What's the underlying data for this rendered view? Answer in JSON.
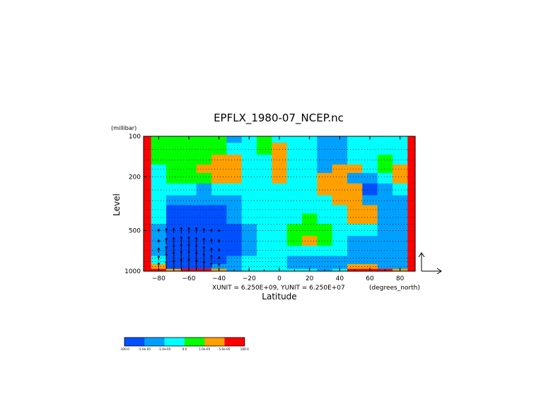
{
  "chart_data": {
    "type": "heatmap",
    "title": "EPFLX_1980-07_NCEP.nc",
    "xlabel": "Latitude",
    "ylabel": "Level",
    "y_unit": "(millibar)",
    "x_unit": "(degrees_north)",
    "vector_scale_text": "XUNIT = 6.250E+09, YUNIT = 6.250E+07",
    "xlim": [
      -90,
      90
    ],
    "ylim": [
      1000,
      100
    ],
    "y_scale": "log",
    "x_ticks": [
      -80,
      -60,
      -40,
      -20,
      0,
      20,
      40,
      60,
      80
    ],
    "y_ticks": [
      100,
      200,
      500,
      1000
    ],
    "colorbar": {
      "colors": [
        "#0050ff",
        "#00a0ff",
        "#00ffff",
        "#00ff00",
        "#ffa000",
        "#ff0000"
      ],
      "labels": [
        "-100.0",
        "-5.0e-05",
        "-1.0e-05",
        "0.0",
        "1.0e-05",
        "5.0e-05",
        "100.0"
      ]
    },
    "levels": [
      100,
      125,
      150,
      175,
      200,
      250,
      300,
      350,
      400,
      500,
      600,
      700,
      850,
      925,
      1000
    ],
    "lats": [
      -90,
      -80,
      -70,
      -60,
      -50,
      -40,
      -30,
      -20,
      -10,
      0,
      10,
      20,
      30,
      40,
      50,
      60,
      70,
      80,
      90
    ],
    "values_class": [
      [
        5,
        3,
        3,
        3,
        3,
        3,
        1,
        2,
        3,
        2,
        2,
        2,
        1,
        1,
        2,
        2,
        2,
        2,
        5
      ],
      [
        5,
        3,
        3,
        3,
        3,
        3,
        2,
        2,
        3,
        4,
        2,
        2,
        1,
        1,
        2,
        2,
        2,
        2,
        5
      ],
      [
        5,
        3,
        3,
        3,
        3,
        4,
        4,
        2,
        2,
        4,
        2,
        2,
        1,
        1,
        2,
        2,
        3,
        2,
        5
      ],
      [
        5,
        2,
        3,
        3,
        4,
        4,
        4,
        2,
        2,
        4,
        2,
        2,
        1,
        4,
        4,
        2,
        3,
        4,
        5
      ],
      [
        5,
        2,
        3,
        3,
        3,
        4,
        4,
        2,
        2,
        4,
        2,
        2,
        4,
        4,
        1,
        1,
        2,
        4,
        5
      ],
      [
        5,
        2,
        2,
        2,
        1,
        2,
        2,
        2,
        2,
        2,
        2,
        2,
        4,
        4,
        4,
        0,
        1,
        2,
        5
      ],
      [
        5,
        2,
        1,
        1,
        1,
        1,
        1,
        2,
        2,
        2,
        2,
        2,
        2,
        4,
        4,
        1,
        1,
        1,
        5
      ],
      [
        5,
        2,
        0,
        0,
        0,
        0,
        1,
        2,
        2,
        2,
        2,
        2,
        2,
        2,
        4,
        4,
        1,
        1,
        5
      ],
      [
        5,
        2,
        0,
        0,
        0,
        0,
        1,
        2,
        2,
        2,
        2,
        3,
        2,
        2,
        4,
        4,
        1,
        1,
        5
      ],
      [
        5,
        1,
        0,
        0,
        0,
        0,
        0,
        1,
        2,
        2,
        3,
        3,
        3,
        2,
        2,
        2,
        1,
        1,
        5
      ],
      [
        5,
        1,
        0,
        0,
        0,
        0,
        0,
        1,
        2,
        2,
        3,
        4,
        3,
        2,
        1,
        1,
        1,
        1,
        5
      ],
      [
        5,
        1,
        0,
        0,
        0,
        0,
        0,
        1,
        2,
        2,
        2,
        2,
        2,
        2,
        1,
        1,
        1,
        1,
        5
      ],
      [
        5,
        2,
        0,
        0,
        0,
        0,
        1,
        2,
        2,
        2,
        1,
        1,
        1,
        1,
        1,
        1,
        1,
        1,
        5
      ],
      [
        5,
        4,
        0,
        0,
        0,
        1,
        1,
        2,
        2,
        2,
        1,
        1,
        1,
        1,
        4,
        4,
        1,
        1,
        5
      ],
      [
        5,
        5,
        4,
        5,
        5,
        4,
        1,
        2,
        2,
        2,
        2,
        2,
        1,
        2,
        5,
        5,
        5,
        4,
        5
      ]
    ],
    "arrows": {
      "lats": [
        -80,
        -75,
        -70,
        -65,
        -60,
        -55,
        -50,
        -45,
        -40
      ],
      "levels": [
        500,
        600,
        700,
        800,
        900
      ],
      "dy": [
        [
          2,
          3,
          3,
          4,
          4,
          4,
          3,
          2,
          1
        ],
        [
          2,
          4,
          5,
          6,
          6,
          5,
          4,
          3,
          2
        ],
        [
          3,
          5,
          7,
          8,
          8,
          7,
          5,
          3,
          2
        ],
        [
          3,
          6,
          8,
          9,
          9,
          8,
          6,
          4,
          2
        ],
        [
          3,
          5,
          7,
          8,
          8,
          7,
          5,
          3,
          2
        ]
      ]
    }
  }
}
